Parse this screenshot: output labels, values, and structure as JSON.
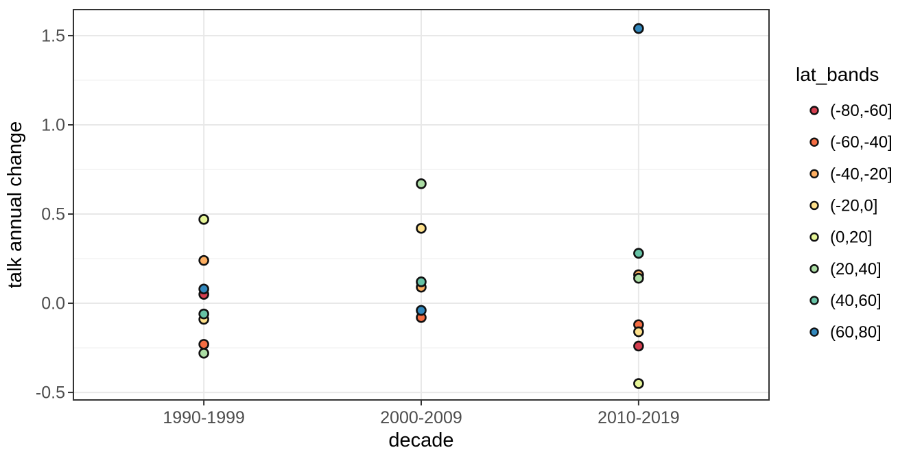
{
  "chart_data": {
    "type": "scatter",
    "title": "",
    "xlabel": "decade",
    "ylabel": "talk annual change",
    "categories": [
      "1990-1999",
      "2000-2009",
      "2010-2019"
    ],
    "y_ticks": [
      "-0.5",
      "0.0",
      "0.5",
      "1.0",
      "1.5"
    ],
    "ylim": [
      -0.542,
      1.646
    ],
    "grid": {
      "major_step": 0.5,
      "minor_step": 0.25,
      "vertical_major_on_categories": true
    },
    "legend": {
      "title": "lat_bands",
      "position": "right",
      "entries": [
        {
          "label": "(-80,-60]",
          "color": "#d53e4f"
        },
        {
          "label": "(-60,-40]",
          "color": "#f46d43"
        },
        {
          "label": "(-40,-20]",
          "color": "#fdae61"
        },
        {
          "label": "(-20,0]",
          "color": "#fee08b"
        },
        {
          "label": "(0,20]",
          "color": "#e6f598"
        },
        {
          "label": "(20,40]",
          "color": "#abdda4"
        },
        {
          "label": "(40,60]",
          "color": "#66c2a5"
        },
        {
          "label": "(60,80]",
          "color": "#3288bd"
        }
      ]
    },
    "series": [
      {
        "name": "(-80,-60]",
        "color": "#d53e4f",
        "points": [
          {
            "x": "1990-1999",
            "y": 0.05
          },
          {
            "x": "2010-2019",
            "y": -0.24
          }
        ]
      },
      {
        "name": "(-60,-40]",
        "color": "#f46d43",
        "points": [
          {
            "x": "1990-1999",
            "y": -0.23
          },
          {
            "x": "2000-2009",
            "y": -0.08
          },
          {
            "x": "2010-2019",
            "y": -0.12
          }
        ]
      },
      {
        "name": "(-40,-20]",
        "color": "#fdae61",
        "points": [
          {
            "x": "1990-1999",
            "y": 0.24
          },
          {
            "x": "2000-2009",
            "y": 0.09
          },
          {
            "x": "2010-2019",
            "y": 0.16
          }
        ]
      },
      {
        "name": "(-20,0]",
        "color": "#fee08b",
        "points": [
          {
            "x": "1990-1999",
            "y": -0.09
          },
          {
            "x": "2000-2009",
            "y": 0.42
          },
          {
            "x": "2010-2019",
            "y": -0.16
          }
        ]
      },
      {
        "name": "(0,20]",
        "color": "#e6f598",
        "points": [
          {
            "x": "1990-1999",
            "y": 0.47
          },
          {
            "x": "2010-2019",
            "y": -0.45
          }
        ]
      },
      {
        "name": "(20,40]",
        "color": "#abdda4",
        "points": [
          {
            "x": "1990-1999",
            "y": -0.28
          },
          {
            "x": "2000-2009",
            "y": 0.67
          },
          {
            "x": "2010-2019",
            "y": 0.14
          }
        ]
      },
      {
        "name": "(40,60]",
        "color": "#66c2a5",
        "points": [
          {
            "x": "1990-1999",
            "y": -0.06
          },
          {
            "x": "2000-2009",
            "y": 0.12
          },
          {
            "x": "2010-2019",
            "y": 0.28
          }
        ]
      },
      {
        "name": "(60,80]",
        "color": "#3288bd",
        "points": [
          {
            "x": "1990-1999",
            "y": 0.08
          },
          {
            "x": "2000-2009",
            "y": -0.04
          },
          {
            "x": "2010-2019",
            "y": 1.54
          }
        ]
      }
    ],
    "style": {
      "background": "#ffffff",
      "panel_fill": "#ffffff",
      "panel_border": "#333333",
      "grid_major": "#e8e8e8",
      "grid_minor": "#f2f2f2",
      "tick_color": "#333333",
      "tick_label_color": "#4d4d4d",
      "title_color": "#000000",
      "point_stroke": "#111111"
    }
  }
}
